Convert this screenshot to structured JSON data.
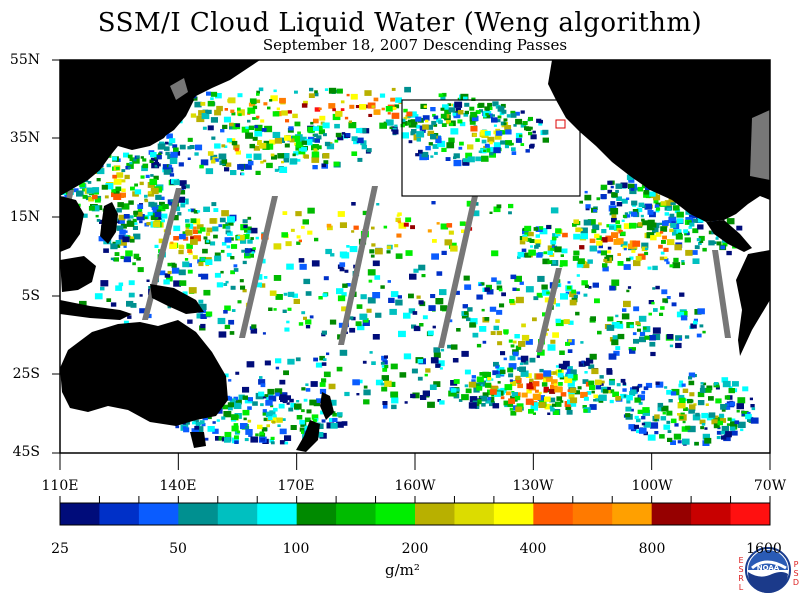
{
  "map": {
    "title": "SSM/I Cloud Liquid Water (Weng algorithm)",
    "subtitle": "September 18, 2007  Descending Passes",
    "lat_labels": [
      "55N",
      "35N",
      "15N",
      "5S",
      "25S",
      "45S"
    ],
    "lon_labels": [
      "110E",
      "140E",
      "170E",
      "160W",
      "130W",
      "100W",
      "70W"
    ]
  },
  "colorbar": {
    "colors": [
      "#000c7a",
      "#0030c8",
      "#0a5cff",
      "#009090",
      "#00c0c0",
      "#00ffff",
      "#008a00",
      "#00bb00",
      "#00ee00",
      "#b8b000",
      "#dcdc00",
      "#ffff00",
      "#ff5a00",
      "#ff7a00",
      "#ffa000",
      "#960000",
      "#c80000",
      "#ff1010"
    ],
    "labels": [
      "25",
      "50",
      "100",
      "200",
      "400",
      "800",
      "1600"
    ],
    "units": "g/m²"
  },
  "logo": {
    "center_text": "NOAA",
    "left_letters": "ESRL",
    "right_letters": "PSD"
  }
}
